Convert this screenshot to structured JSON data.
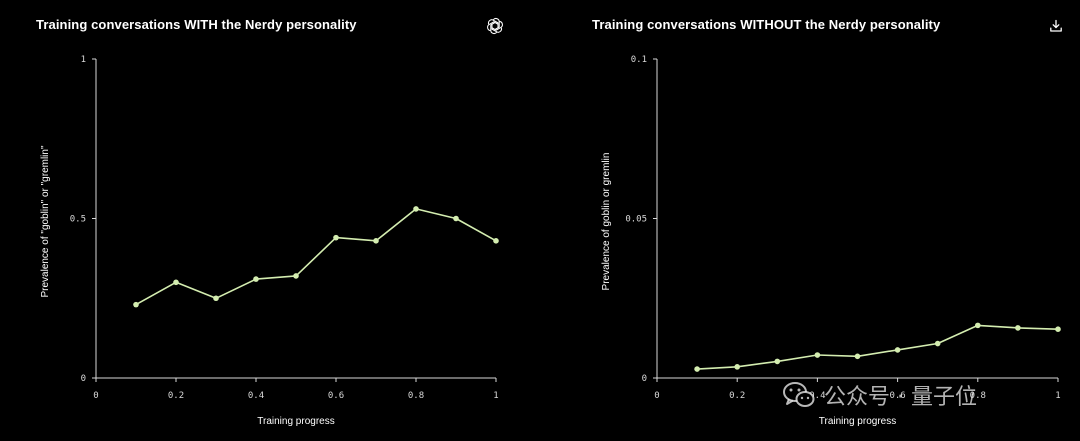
{
  "colors": {
    "background": "#000000",
    "line": "#d4edb0",
    "point": "#d4edb0",
    "axis": "#d9d9d9",
    "text": "#ffffff"
  },
  "panels": [
    {
      "title": "Training conversations WITH the Nerdy personality",
      "icon": "openai-logo-icon"
    },
    {
      "title": "Training conversations WITHOUT the Nerdy personality",
      "icon": "download-icon"
    }
  ],
  "watermark": {
    "text": "公众号 · 量子位",
    "icon": "wechat-icon"
  },
  "chart_data": [
    {
      "type": "line",
      "title": "Training conversations WITH the Nerdy personality",
      "xlabel": "Training progress",
      "ylabel": "Prevalence of \"goblin\" or \"gremlin\"",
      "xlim": [
        0,
        1
      ],
      "ylim": [
        0,
        1
      ],
      "xticks": [
        0,
        0.2,
        0.4,
        0.6,
        0.8,
        1
      ],
      "xtick_labels": [
        "0",
        "0.2",
        "0.4",
        "0.6",
        "0.8",
        "1"
      ],
      "yticks": [
        0,
        0.5,
        1
      ],
      "ytick_labels": [
        "0",
        "0.5",
        "1"
      ],
      "grid": false,
      "series": [
        {
          "x": [
            0.1,
            0.2,
            0.3,
            0.4,
            0.5,
            0.6,
            0.7,
            0.8,
            0.9,
            1.0
          ],
          "y": [
            0.23,
            0.3,
            0.25,
            0.31,
            0.32,
            0.44,
            0.43,
            0.53,
            0.5,
            0.43
          ]
        }
      ]
    },
    {
      "type": "line",
      "title": "Training conversations WITHOUT the Nerdy personality",
      "xlabel": "Training progress",
      "ylabel": "Prevalence of goblin or gremlin",
      "xlim": [
        0,
        1
      ],
      "ylim": [
        0,
        0.1
      ],
      "xticks": [
        0,
        0.2,
        0.4,
        0.6,
        0.8,
        1
      ],
      "xtick_labels": [
        "0",
        "0.2",
        "0.4",
        "0.6",
        "0.8",
        "1"
      ],
      "yticks": [
        0,
        0.05,
        0.1
      ],
      "ytick_labels": [
        "0",
        "0.05",
        "0.1"
      ],
      "grid": false,
      "series": [
        {
          "x": [
            0.1,
            0.2,
            0.3,
            0.4,
            0.5,
            0.6,
            0.7,
            0.8,
            0.9,
            1.0
          ],
          "y": [
            0.0028,
            0.0035,
            0.0052,
            0.0072,
            0.0068,
            0.0088,
            0.0108,
            0.0165,
            0.0157,
            0.0153
          ]
        }
      ]
    }
  ]
}
